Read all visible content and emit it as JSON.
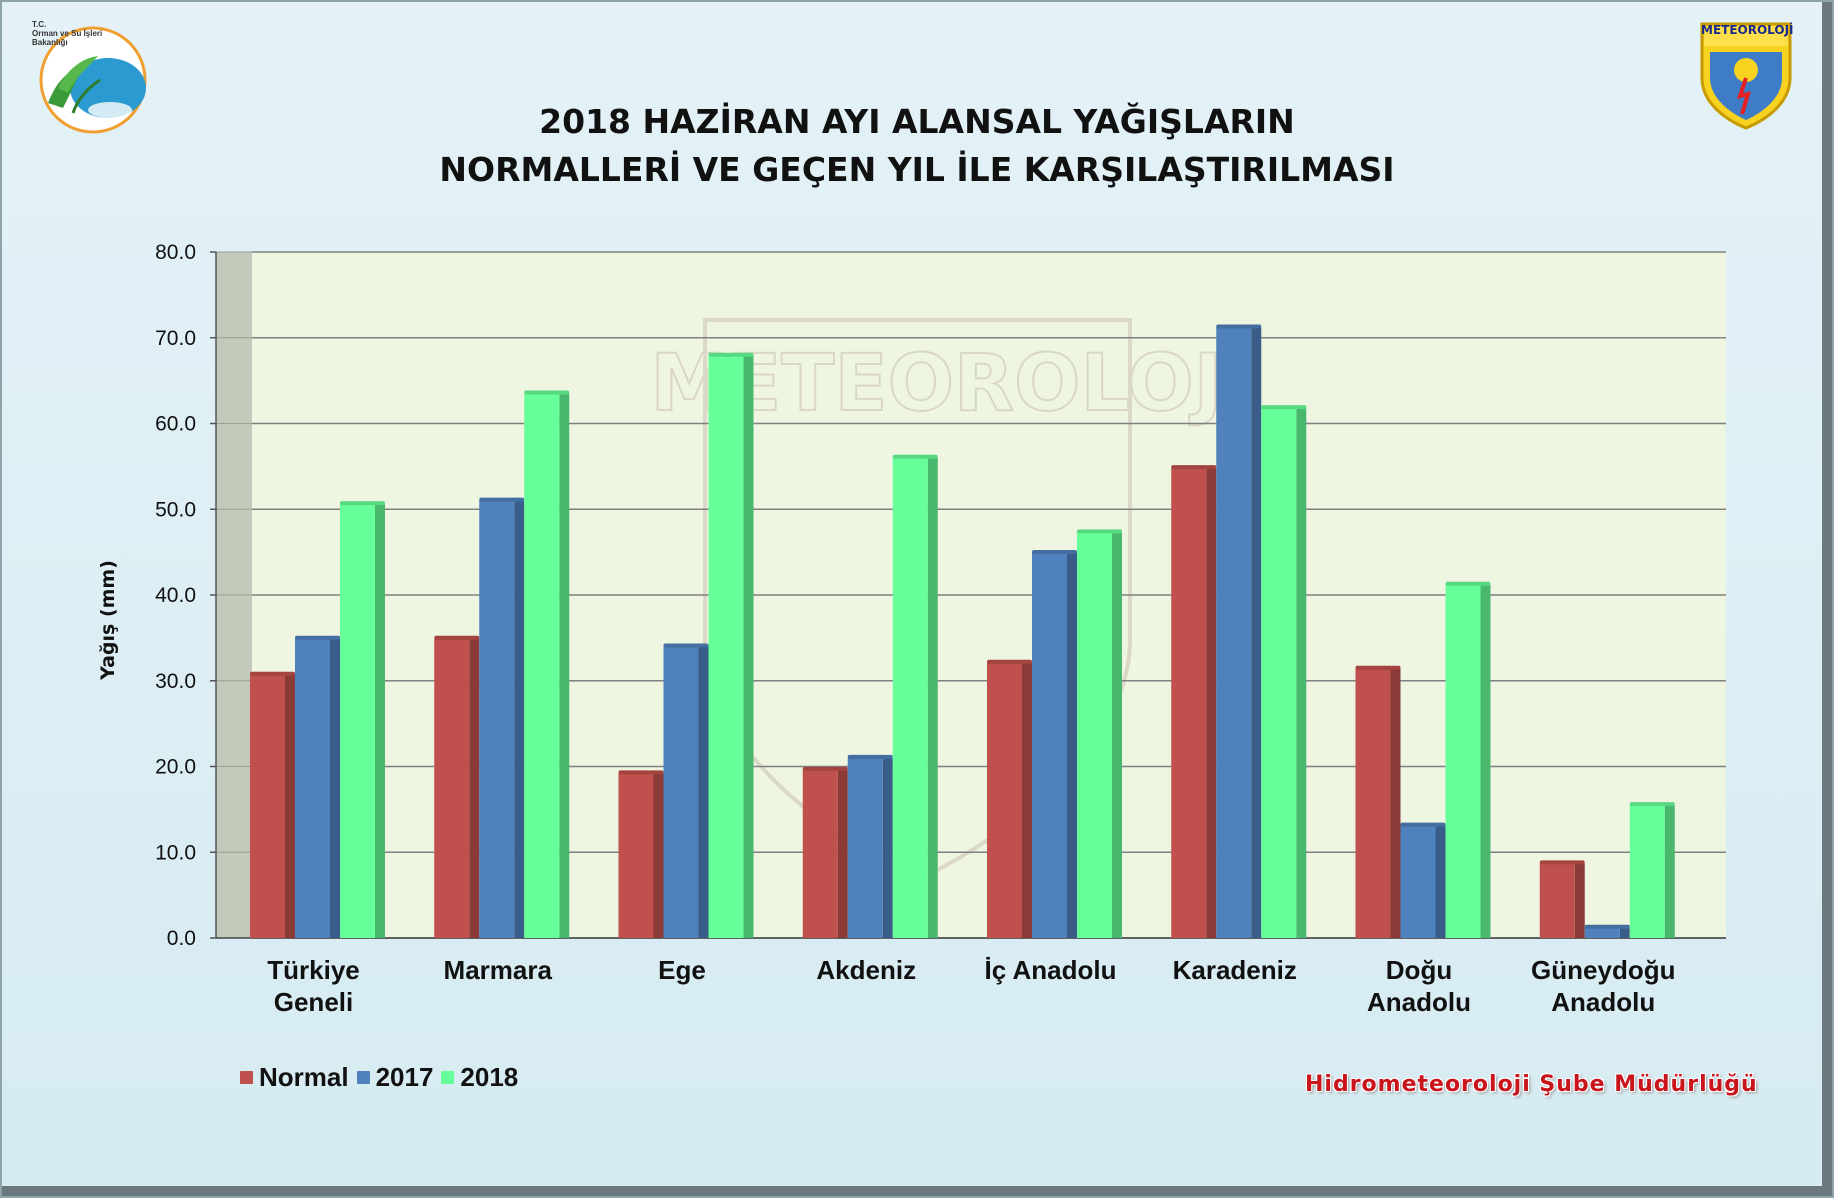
{
  "header": {
    "title_line1": "2018 HAZİRAN AYI ALANSAL YAĞIŞLARIN",
    "title_line2": "NORMALLERİ VE GEÇEN YIL İLE KARŞILAŞTIRILMASI",
    "left_logo_text": [
      "T.C.",
      "Orman ve Su İşleri",
      "Bakanlığı"
    ],
    "right_logo_text": "METEOROLOJİ",
    "watermark_text": "METEOROLOJİ"
  },
  "footer": {
    "text": "Hidrometeoroloji Şube Müdürlüğü"
  },
  "chart_data": {
    "type": "bar",
    "title": "2018 HAZİRAN AYI ALANSAL YAĞIŞLARIN NORMALLERİ VE GEÇEN YIL İLE KARŞILAŞTIRILMASI",
    "ylabel": "Yağış (mm)",
    "xlabel": "",
    "ylim": [
      0,
      80
    ],
    "yticks": [
      "0.0",
      "10.0",
      "20.0",
      "30.0",
      "40.0",
      "50.0",
      "60.0",
      "70.0",
      "80.0"
    ],
    "grid": true,
    "legend_position": "bottom-left",
    "categories": [
      [
        "Türkiye",
        "Geneli"
      ],
      [
        "Marmara"
      ],
      [
        "Ege"
      ],
      [
        "Akdeniz"
      ],
      [
        "İç Anadolu"
      ],
      [
        "Karadeniz"
      ],
      [
        "Doğu",
        "Anadolu"
      ],
      [
        "Güneydoğu",
        "Anadolu"
      ]
    ],
    "series": [
      {
        "name": "Normal",
        "color": "#c0504d",
        "values": [
          30.7,
          34.9,
          19.2,
          19.6,
          32.1,
          54.8,
          31.4,
          8.7
        ]
      },
      {
        "name": "2017",
        "color": "#4f81bd",
        "values": [
          34.9,
          51.0,
          34.0,
          21.0,
          44.9,
          71.2,
          13.1,
          1.2
        ]
      },
      {
        "name": "2018",
        "color": "#66ff99",
        "values": [
          50.6,
          63.5,
          67.9,
          56.0,
          47.3,
          61.8,
          41.2,
          15.5
        ]
      }
    ]
  }
}
